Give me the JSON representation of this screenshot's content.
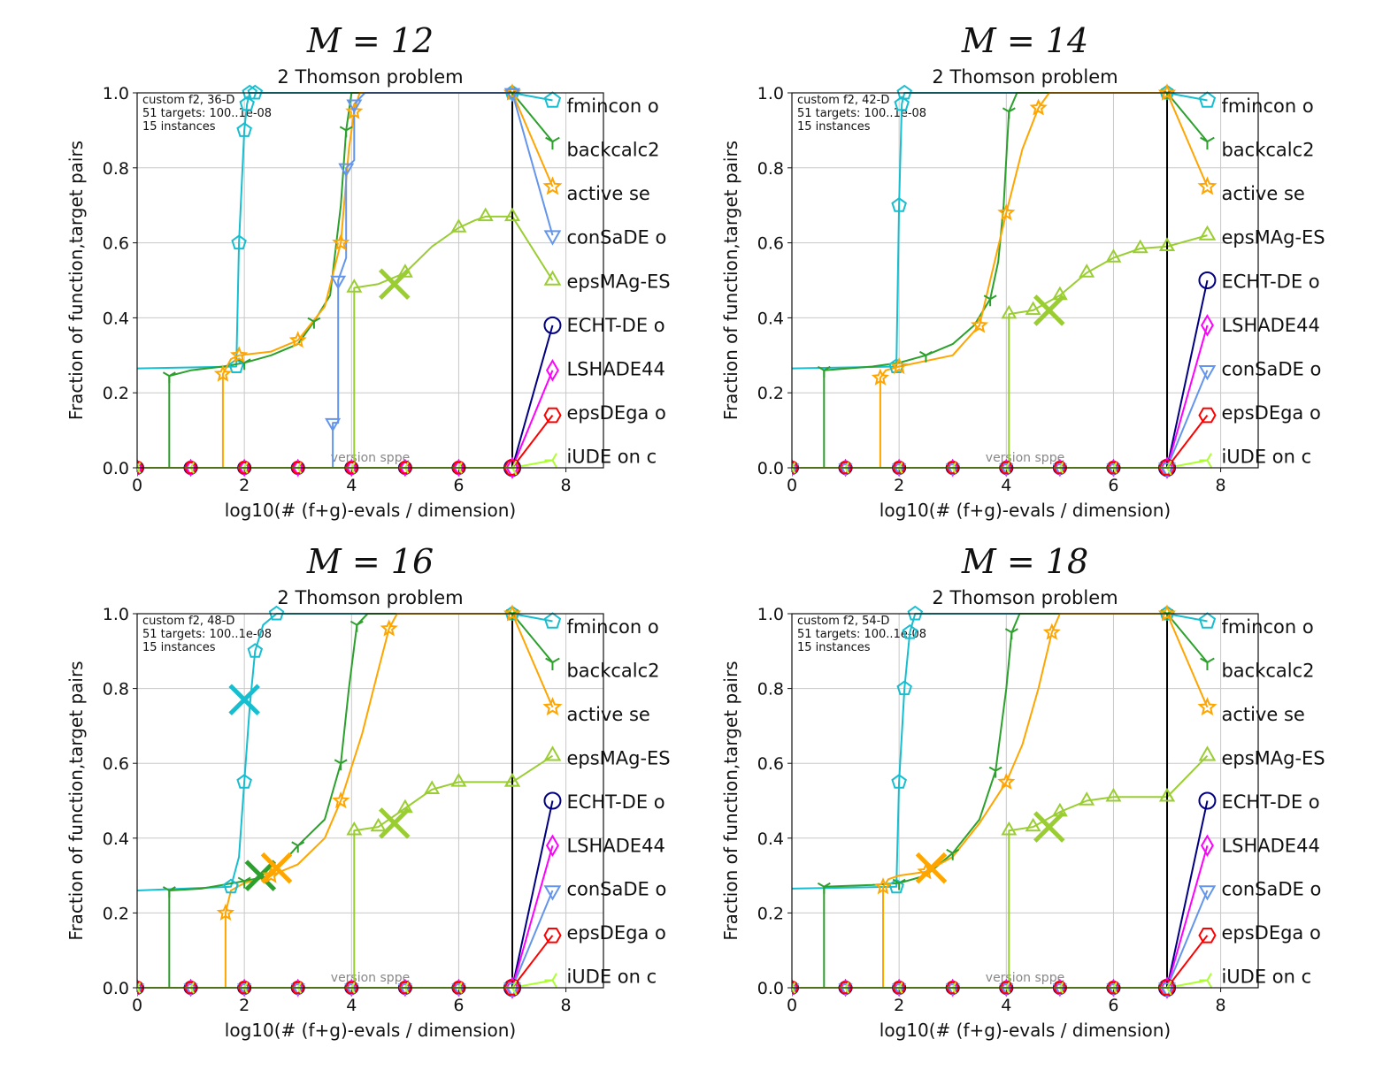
{
  "chart_data": [
    {
      "type": "line",
      "panel_title": "M = 12",
      "title": "2 Thomson problem",
      "xlabel": "log10(# (f+g)-evals / dimension)",
      "ylabel": "Fraction of function,target pairs",
      "xlim": [
        0,
        8.7
      ],
      "ylim": [
        0,
        1.0
      ],
      "xticks": [
        "0",
        "2",
        "4",
        "6",
        "8"
      ],
      "yticks": [
        "0.0",
        "0.2",
        "0.4",
        "0.6",
        "0.8",
        "1.0"
      ],
      "grid": true,
      "info": [
        "custom f2, 36-D",
        "51 targets: 100..1e-08",
        "15 instances"
      ],
      "version": "version sppe",
      "budget_x": 7,
      "series": [
        {
          "name": "fmincon o",
          "color": "#17becf",
          "marker": "pentagon",
          "x": [
            0,
            1.85,
            1.9,
            2.0,
            2.05,
            2.1,
            2.2,
            7,
            7.75
          ],
          "y": [
            0.265,
            0.27,
            0.6,
            0.9,
            0.97,
            1.0,
            1.0,
            1.0,
            0.98
          ],
          "end_y": 0.98,
          "cross": null
        },
        {
          "name": "backcalc2",
          "color": "#2ca02c",
          "marker": "tri",
          "x": [
            0.6,
            0.6,
            1.0,
            1.6,
            2.0,
            2.5,
            3.0,
            3.3,
            3.6,
            3.8,
            3.9,
            4.0,
            7,
            7.75
          ],
          "y": [
            0.0,
            0.245,
            0.26,
            0.27,
            0.28,
            0.3,
            0.33,
            0.39,
            0.46,
            0.7,
            0.9,
            1.0,
            1.0,
            0.87
          ],
          "end_y": 0.87,
          "cross": null
        },
        {
          "name": "active se",
          "color": "#ffa500",
          "marker": "star",
          "x": [
            1.6,
            1.6,
            1.75,
            1.9,
            2.5,
            3.0,
            3.5,
            3.8,
            3.95,
            4.05,
            4.15,
            7,
            7.75
          ],
          "y": [
            0.0,
            0.25,
            0.29,
            0.3,
            0.31,
            0.34,
            0.43,
            0.6,
            0.85,
            0.95,
            1.0,
            1.0,
            0.75
          ],
          "end_y": 0.75,
          "cross": null
        },
        {
          "name": "conSaDE o",
          "color": "#6495ed",
          "marker": "tri_down",
          "x": [
            3.65,
            3.65,
            3.75,
            3.75,
            3.9,
            3.9,
            4.05,
            4.05,
            4.25,
            7,
            7.75
          ],
          "y": [
            0.0,
            0.12,
            0.12,
            0.5,
            0.56,
            0.8,
            0.82,
            0.97,
            1.0,
            1.0,
            0.62
          ],
          "end_y": 0.62,
          "cross": null
        },
        {
          "name": "epsMAg-ES",
          "color": "#9acd32",
          "marker": "triangle",
          "x": [
            4.05,
            4.05,
            4.5,
            5.0,
            5.5,
            6.0,
            6.3,
            6.5,
            7,
            7.75
          ],
          "y": [
            0.0,
            0.48,
            0.49,
            0.52,
            0.59,
            0.64,
            0.66,
            0.67,
            0.67,
            0.5
          ],
          "end_y": 0.5,
          "cross": [
            4.8,
            0.49
          ]
        },
        {
          "name": "ECHT-DE o",
          "color": "#000080",
          "marker": "circle",
          "x": [
            0,
            7,
            7.75
          ],
          "y": [
            0.0,
            0.0,
            0.38
          ],
          "end_y": 0.38,
          "cross": null
        },
        {
          "name": "LSHADE44",
          "color": "#ff00ff",
          "marker": "diamond",
          "x": [
            0,
            7,
            7.75
          ],
          "y": [
            0.0,
            0.0,
            0.26
          ],
          "end_y": 0.26,
          "cross": null
        },
        {
          "name": "epsDEga o",
          "color": "#ff0000",
          "marker": "hexagon",
          "x": [
            0,
            7,
            7.75
          ],
          "y": [
            0.0,
            0.0,
            0.14
          ],
          "end_y": 0.14,
          "cross": null
        },
        {
          "name": "iUDE on c",
          "color": "#adff2f",
          "marker": "tri_left",
          "x": [
            0,
            7,
            7.75
          ],
          "y": [
            0.0,
            0.0,
            0.02
          ],
          "end_y": 0.02,
          "cross": null
        }
      ]
    },
    {
      "type": "line",
      "panel_title": "M = 14",
      "title": "2 Thomson problem",
      "xlabel": "log10(# (f+g)-evals / dimension)",
      "ylabel": "Fraction of function,target pairs",
      "xlim": [
        0,
        8.7
      ],
      "ylim": [
        0,
        1.0
      ],
      "xticks": [
        "0",
        "2",
        "4",
        "6",
        "8"
      ],
      "yticks": [
        "0.0",
        "0.2",
        "0.4",
        "0.6",
        "0.8",
        "1.0"
      ],
      "grid": true,
      "info": [
        "custom f2, 42-D",
        "51 targets: 100..1e-08",
        "15 instances"
      ],
      "version": "version sppe",
      "budget_x": 7,
      "series": [
        {
          "name": "fmincon o",
          "color": "#17becf",
          "marker": "pentagon",
          "x": [
            0,
            1.95,
            2.0,
            2.05,
            2.1,
            7,
            7.75
          ],
          "y": [
            0.265,
            0.27,
            0.7,
            0.97,
            1.0,
            1.0,
            0.98
          ],
          "end_y": 0.98,
          "cross": null
        },
        {
          "name": "backcalc2",
          "color": "#2ca02c",
          "marker": "tri",
          "x": [
            0.6,
            0.6,
            1.5,
            2.0,
            2.5,
            3.0,
            3.4,
            3.7,
            3.85,
            3.95,
            4.05,
            4.2,
            7,
            7.75
          ],
          "y": [
            0.0,
            0.26,
            0.27,
            0.28,
            0.3,
            0.33,
            0.38,
            0.45,
            0.55,
            0.7,
            0.95,
            1.0,
            1.0,
            0.87
          ],
          "end_y": 0.87,
          "cross": null
        },
        {
          "name": "active se",
          "color": "#ffa500",
          "marker": "star",
          "x": [
            1.65,
            1.65,
            1.75,
            2.0,
            3.0,
            3.5,
            3.7,
            4.0,
            4.3,
            4.6,
            4.8,
            7,
            7.75
          ],
          "y": [
            0.0,
            0.24,
            0.26,
            0.27,
            0.3,
            0.38,
            0.5,
            0.68,
            0.85,
            0.96,
            1.0,
            1.0,
            0.75
          ],
          "end_y": 0.75,
          "cross": null
        },
        {
          "name": "epsMAg-ES",
          "color": "#9acd32",
          "marker": "triangle",
          "x": [
            4.05,
            4.05,
            4.5,
            5.0,
            5.5,
            6.0,
            6.5,
            7,
            7.75
          ],
          "y": [
            0.0,
            0.41,
            0.42,
            0.46,
            0.52,
            0.56,
            0.585,
            0.59,
            0.62
          ],
          "end_y": 0.62,
          "cross": [
            4.8,
            0.42
          ]
        },
        {
          "name": "ECHT-DE o",
          "color": "#000080",
          "marker": "circle",
          "x": [
            0,
            7,
            7.75
          ],
          "y": [
            0.0,
            0.0,
            0.5
          ],
          "end_y": 0.5,
          "cross": null
        },
        {
          "name": "LSHADE44",
          "color": "#ff00ff",
          "marker": "diamond",
          "x": [
            0,
            7,
            7.75
          ],
          "y": [
            0.0,
            0.0,
            0.38
          ],
          "end_y": 0.38,
          "cross": null
        },
        {
          "name": "conSaDE o",
          "color": "#6495ed",
          "marker": "tri_down",
          "x": [
            0,
            7,
            7.75
          ],
          "y": [
            0.0,
            0.0,
            0.26
          ],
          "end_y": 0.26,
          "cross": null
        },
        {
          "name": "epsDEga o",
          "color": "#ff0000",
          "marker": "hexagon",
          "x": [
            0,
            7,
            7.75
          ],
          "y": [
            0.0,
            0.0,
            0.14
          ],
          "end_y": 0.14,
          "cross": null
        },
        {
          "name": "iUDE on c",
          "color": "#adff2f",
          "marker": "tri_left",
          "x": [
            0,
            7,
            7.75
          ],
          "y": [
            0.0,
            0.0,
            0.02
          ],
          "end_y": 0.02,
          "cross": null
        }
      ]
    },
    {
      "type": "line",
      "panel_title": "M = 16",
      "title": "2 Thomson problem",
      "xlabel": "log10(# (f+g)-evals / dimension)",
      "ylabel": "Fraction of function,target pairs",
      "xlim": [
        0,
        8.7
      ],
      "ylim": [
        0,
        1.0
      ],
      "xticks": [
        "0",
        "2",
        "4",
        "6",
        "8"
      ],
      "yticks": [
        "0.0",
        "0.2",
        "0.4",
        "0.6",
        "0.8",
        "1.0"
      ],
      "grid": true,
      "info": [
        "custom f2, 48-D",
        "51 targets: 100..1e-08",
        "15 instances"
      ],
      "version": "version sppe",
      "budget_x": 7,
      "series": [
        {
          "name": "fmincon o",
          "color": "#17becf",
          "marker": "pentagon",
          "x": [
            0,
            1.75,
            1.9,
            2.0,
            2.1,
            2.2,
            2.35,
            2.6,
            7,
            7.75
          ],
          "y": [
            0.26,
            0.27,
            0.35,
            0.55,
            0.75,
            0.9,
            0.97,
            1.0,
            1.0,
            0.98
          ],
          "end_y": 0.98,
          "cross": [
            2.0,
            0.77
          ]
        },
        {
          "name": "backcalc2",
          "color": "#2ca02c",
          "marker": "tri",
          "x": [
            0.6,
            0.6,
            1.2,
            2.0,
            2.5,
            3.0,
            3.5,
            3.8,
            3.95,
            4.1,
            4.3,
            7,
            7.75
          ],
          "y": [
            0.0,
            0.26,
            0.265,
            0.285,
            0.3,
            0.38,
            0.45,
            0.6,
            0.8,
            0.97,
            1.0,
            1.0,
            0.87
          ],
          "end_y": 0.87,
          "cross": [
            2.3,
            0.3
          ]
        },
        {
          "name": "active se",
          "color": "#ffa500",
          "marker": "star",
          "x": [
            1.65,
            1.65,
            1.75,
            2.0,
            2.5,
            3.0,
            3.5,
            3.8,
            4.2,
            4.5,
            4.7,
            4.85,
            7,
            7.75
          ],
          "y": [
            0.0,
            0.2,
            0.26,
            0.28,
            0.3,
            0.33,
            0.4,
            0.5,
            0.68,
            0.85,
            0.96,
            1.0,
            1.0,
            0.75
          ],
          "end_y": 0.75,
          "cross": [
            2.6,
            0.32
          ]
        },
        {
          "name": "epsMAg-ES",
          "color": "#9acd32",
          "marker": "triangle",
          "x": [
            4.05,
            4.05,
            4.5,
            5.0,
            5.5,
            6.0,
            7,
            7.75
          ],
          "y": [
            0.0,
            0.42,
            0.43,
            0.48,
            0.53,
            0.55,
            0.55,
            0.62
          ],
          "end_y": 0.62,
          "cross": [
            4.8,
            0.44
          ]
        },
        {
          "name": "ECHT-DE o",
          "color": "#000080",
          "marker": "circle",
          "x": [
            0,
            7,
            7.75
          ],
          "y": [
            0.0,
            0.0,
            0.5
          ],
          "end_y": 0.5,
          "cross": null
        },
        {
          "name": "LSHADE44",
          "color": "#ff00ff",
          "marker": "diamond",
          "x": [
            0,
            7,
            7.75
          ],
          "y": [
            0.0,
            0.0,
            0.38
          ],
          "end_y": 0.38,
          "cross": null
        },
        {
          "name": "conSaDE o",
          "color": "#6495ed",
          "marker": "tri_down",
          "x": [
            0,
            7,
            7.75
          ],
          "y": [
            0.0,
            0.0,
            0.26
          ],
          "end_y": 0.26,
          "cross": null
        },
        {
          "name": "epsDEga o",
          "color": "#ff0000",
          "marker": "hexagon",
          "x": [
            0,
            7,
            7.75
          ],
          "y": [
            0.0,
            0.0,
            0.14
          ],
          "end_y": 0.14,
          "cross": null
        },
        {
          "name": "iUDE on c",
          "color": "#adff2f",
          "marker": "tri_left",
          "x": [
            0,
            7,
            7.75
          ],
          "y": [
            0.0,
            0.0,
            0.02
          ],
          "end_y": 0.02,
          "cross": null
        }
      ]
    },
    {
      "type": "line",
      "panel_title": "M = 18",
      "title": "2 Thomson problem",
      "xlabel": "log10(# (f+g)-evals / dimension)",
      "ylabel": "Fraction of function,target pairs",
      "xlim": [
        0,
        8.7
      ],
      "ylim": [
        0,
        1.0
      ],
      "xticks": [
        "0",
        "2",
        "4",
        "6",
        "8"
      ],
      "yticks": [
        "0.0",
        "0.2",
        "0.4",
        "0.6",
        "0.8",
        "1.0"
      ],
      "grid": true,
      "info": [
        "custom f2, 54-D",
        "51 targets: 100..1e-08",
        "15 instances"
      ],
      "version": "version sppe",
      "budget_x": 7,
      "series": [
        {
          "name": "fmincon o",
          "color": "#17becf",
          "marker": "pentagon",
          "x": [
            0,
            1.95,
            2.0,
            2.1,
            2.2,
            2.3,
            7,
            7.75
          ],
          "y": [
            0.265,
            0.27,
            0.55,
            0.8,
            0.95,
            1.0,
            1.0,
            0.98
          ],
          "end_y": 0.98,
          "cross": null
        },
        {
          "name": "backcalc2",
          "color": "#2ca02c",
          "marker": "tri",
          "x": [
            0.6,
            0.6,
            1.5,
            2.0,
            2.5,
            3.0,
            3.5,
            3.8,
            4.0,
            4.1,
            4.25,
            7,
            7.75
          ],
          "y": [
            0.0,
            0.27,
            0.275,
            0.28,
            0.3,
            0.36,
            0.45,
            0.58,
            0.8,
            0.95,
            1.0,
            1.0,
            0.87
          ],
          "end_y": 0.87,
          "cross": null
        },
        {
          "name": "active se",
          "color": "#ffa500",
          "marker": "star",
          "x": [
            1.7,
            1.7,
            1.8,
            2.0,
            2.5,
            3.0,
            3.5,
            4.0,
            4.3,
            4.6,
            4.85,
            5.0,
            7,
            7.75
          ],
          "y": [
            0.0,
            0.27,
            0.29,
            0.3,
            0.31,
            0.35,
            0.44,
            0.55,
            0.65,
            0.8,
            0.95,
            1.0,
            1.0,
            0.75
          ],
          "end_y": 0.75,
          "cross": [
            2.6,
            0.32
          ]
        },
        {
          "name": "epsMAg-ES",
          "color": "#9acd32",
          "marker": "triangle",
          "x": [
            4.05,
            4.05,
            4.5,
            5.0,
            5.5,
            6.0,
            7,
            7.75
          ],
          "y": [
            0.0,
            0.42,
            0.43,
            0.47,
            0.5,
            0.51,
            0.51,
            0.62
          ],
          "end_y": 0.62,
          "cross": [
            4.8,
            0.43
          ]
        },
        {
          "name": "ECHT-DE o",
          "color": "#000080",
          "marker": "circle",
          "x": [
            0,
            7,
            7.75
          ],
          "y": [
            0.0,
            0.0,
            0.5
          ],
          "end_y": 0.5,
          "cross": null
        },
        {
          "name": "LSHADE44",
          "color": "#ff00ff",
          "marker": "diamond",
          "x": [
            0,
            7,
            7.75
          ],
          "y": [
            0.0,
            0.0,
            0.38
          ],
          "end_y": 0.38,
          "cross": null
        },
        {
          "name": "conSaDE o",
          "color": "#6495ed",
          "marker": "tri_down",
          "x": [
            0,
            7,
            7.75
          ],
          "y": [
            0.0,
            0.0,
            0.26
          ],
          "end_y": 0.26,
          "cross": null
        },
        {
          "name": "epsDEga o",
          "color": "#ff0000",
          "marker": "hexagon",
          "x": [
            0,
            7,
            7.75
          ],
          "y": [
            0.0,
            0.0,
            0.14
          ],
          "end_y": 0.14,
          "cross": null
        },
        {
          "name": "iUDE on c",
          "color": "#adff2f",
          "marker": "tri_left",
          "x": [
            0,
            7,
            7.75
          ],
          "y": [
            0.0,
            0.0,
            0.02
          ],
          "end_y": 0.02,
          "cross": null
        }
      ]
    }
  ]
}
